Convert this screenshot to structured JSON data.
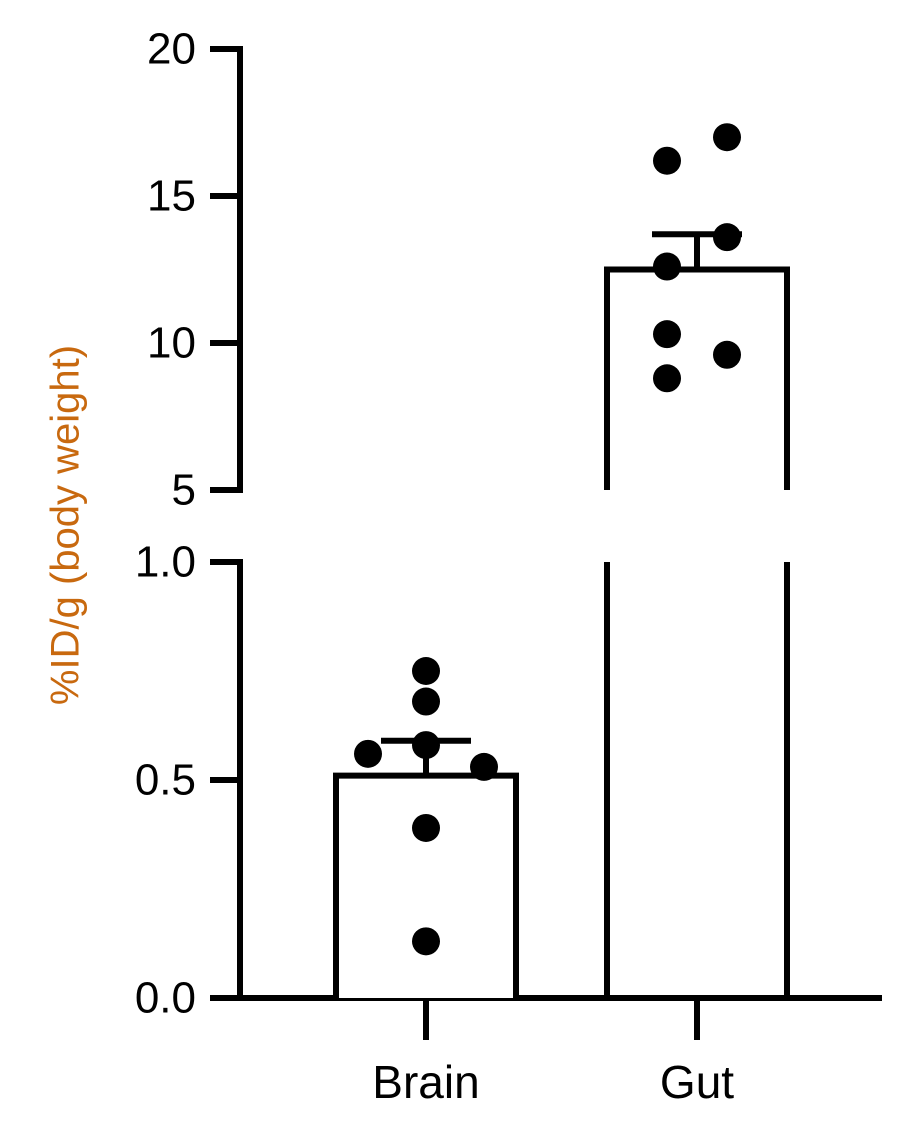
{
  "chart_data": {
    "type": "bar",
    "title": "",
    "xlabel": "",
    "ylabel": "%ID/g (body weight)",
    "ylabel_color": "#c8690f",
    "axis_break": true,
    "y_segments": [
      {
        "ylim": [
          0,
          1.0
        ],
        "ticks": [
          "0.0",
          "0.5",
          "1.0"
        ]
      },
      {
        "ylim": [
          5,
          20
        ],
        "ticks": [
          "5",
          "10",
          "15",
          "20"
        ]
      }
    ],
    "categories": [
      "Brain",
      "Gut"
    ],
    "values": [
      0.51,
      12.5
    ],
    "error_bars": [
      0.08,
      1.2
    ],
    "points": [
      [
        0.75,
        0.68,
        0.56,
        0.58,
        0.53,
        0.39,
        0.13
      ],
      [
        17.0,
        16.2,
        13.6,
        12.6,
        10.3,
        9.6,
        8.8
      ]
    ],
    "bar_fill": "#ffffff",
    "bar_stroke": "#000000",
    "point_color": "#000000",
    "grid": false,
    "legend": "none"
  }
}
